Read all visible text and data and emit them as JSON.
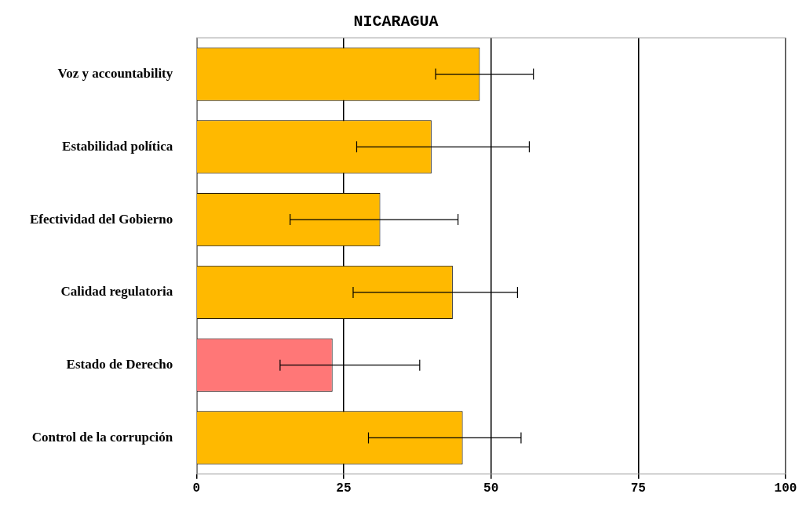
{
  "chart_data": {
    "type": "bar",
    "title": "NICARAGUA",
    "orientation": "horizontal",
    "categories": [
      "Voz y accountability",
      "Estabilidad política",
      "Efectividad del Gobierno",
      "Calidad regulatoria",
      "Estado de Derecho",
      "Control de la corrupción"
    ],
    "values": [
      48.1,
      39.9,
      31.2,
      43.5,
      23.1,
      45.2
    ],
    "colors": [
      "#ffb900",
      "#ffb900",
      "#ffb900",
      "#ffb900",
      "#ff7777",
      "#ffb900"
    ],
    "errors": [
      [
        40.6,
        57.2
      ],
      [
        27.2,
        56.5
      ],
      [
        15.9,
        44.4
      ],
      [
        26.6,
        54.5
      ],
      [
        14.2,
        37.9
      ],
      [
        29.2,
        55.1
      ]
    ],
    "xlim": [
      0,
      100
    ],
    "xticks": [
      0,
      25,
      50,
      75,
      100
    ],
    "grid": "x",
    "legend": false
  }
}
